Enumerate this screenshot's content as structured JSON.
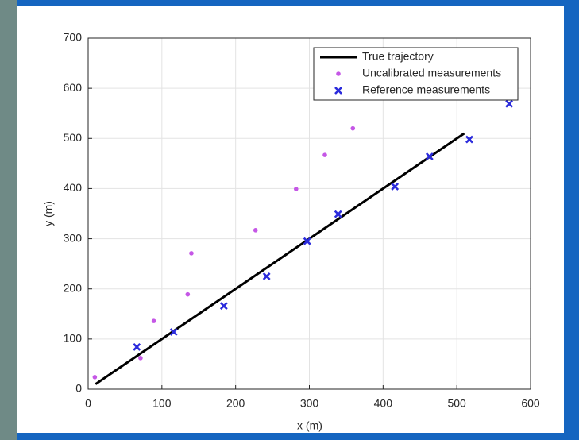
{
  "chart_data": {
    "type": "scatter",
    "xlabel": "x (m)",
    "ylabel": "y (m)",
    "xlim": [
      0,
      600
    ],
    "ylim": [
      0,
      700
    ],
    "xticks": [
      0,
      100,
      200,
      300,
      400,
      500,
      600
    ],
    "yticks": [
      0,
      100,
      200,
      300,
      400,
      500,
      600,
      700
    ],
    "grid": true,
    "legend": "upper right",
    "series": [
      {
        "name": "True trajectory",
        "kind": "line",
        "color": "#000000",
        "x": [
          10,
          510
        ],
        "values": [
          10,
          510
        ]
      },
      {
        "name": "Uncalibrated measurements",
        "kind": "dot",
        "color": "#c557e6",
        "x": [
          9,
          71,
          89,
          135,
          140,
          227,
          282,
          321,
          359
        ],
        "values": [
          24,
          62,
          136,
          189,
          271,
          317,
          399,
          467,
          520
        ]
      },
      {
        "name": "Reference measurements",
        "kind": "x",
        "color": "#2b2bdc",
        "x": [
          66,
          116,
          184,
          242,
          297,
          339,
          416,
          463,
          517,
          571
        ],
        "values": [
          84,
          114,
          166,
          225,
          295,
          349,
          404,
          464,
          498,
          569
        ]
      }
    ]
  }
}
